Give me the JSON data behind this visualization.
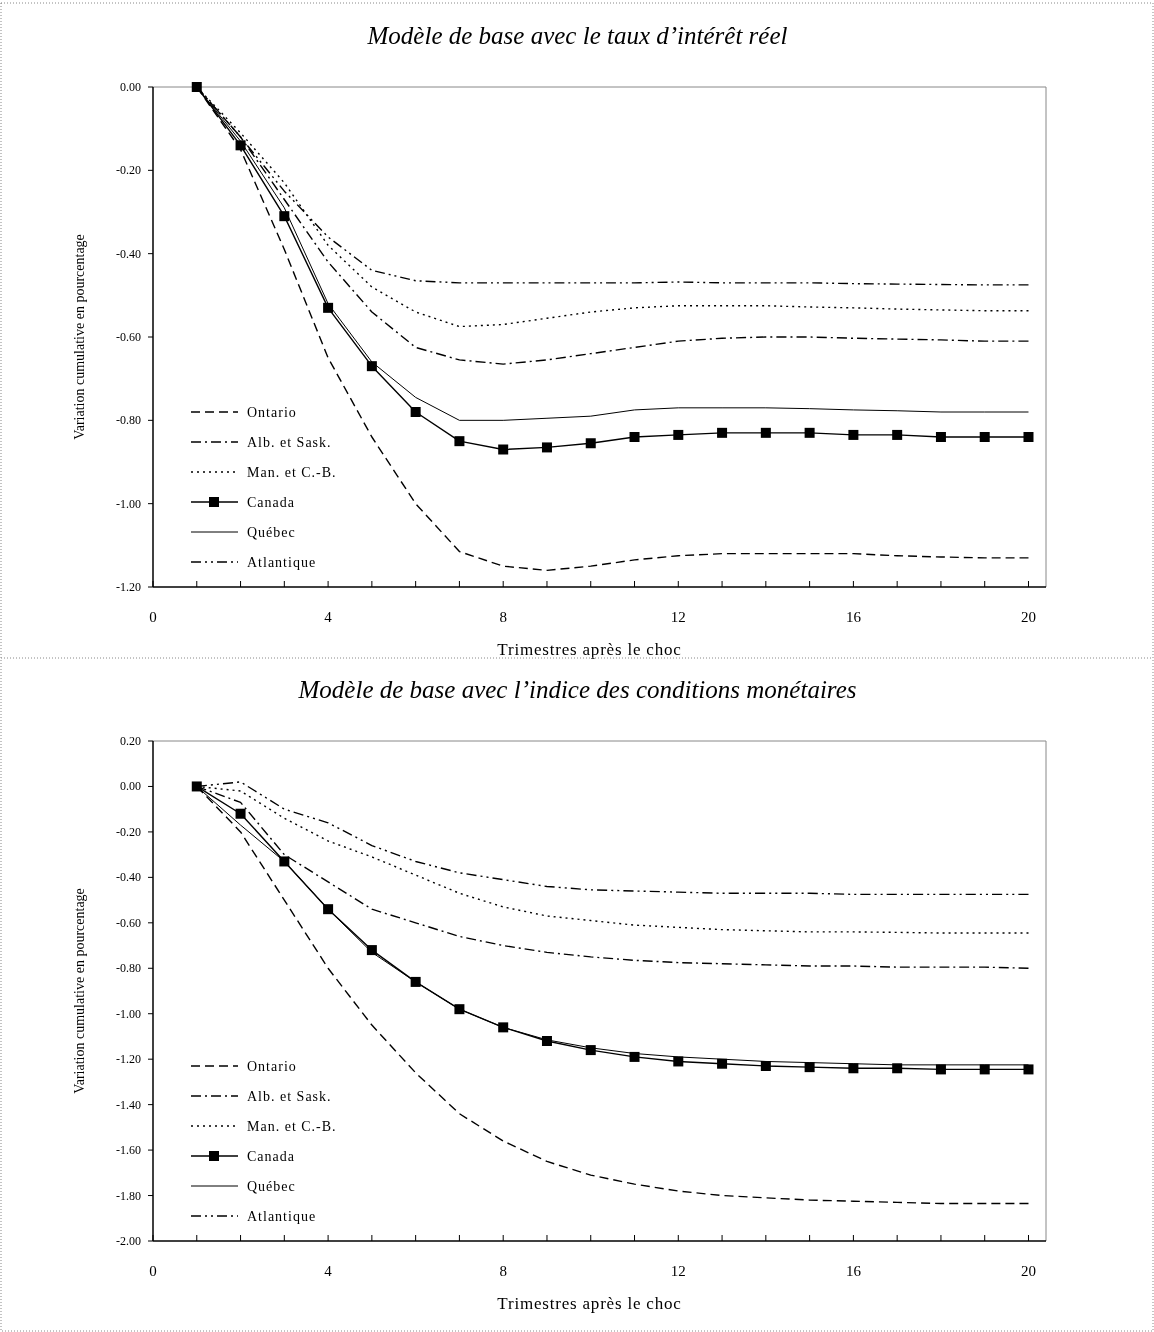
{
  "chart_data": [
    {
      "type": "line",
      "title": "Modèle de base avec le taux d’intérêt réel",
      "xlabel": "Trimestres après le choc",
      "ylabel": "Variation cumulative en pourcentage",
      "x": [
        1,
        2,
        3,
        4,
        5,
        6,
        7,
        8,
        9,
        10,
        11,
        12,
        13,
        14,
        15,
        16,
        17,
        18,
        19,
        20
      ],
      "xlim": [
        0,
        20.4
      ],
      "xticks": [
        0,
        {
          "value": 1,
          "label": null
        },
        {
          "value": 2,
          "label": null
        },
        {
          "value": 3,
          "label": null
        },
        4,
        {
          "value": 5,
          "label": null
        },
        {
          "value": 6,
          "label": null
        },
        {
          "value": 7,
          "label": null
        },
        8,
        {
          "value": 9,
          "label": null
        },
        {
          "value": 10,
          "label": null
        },
        {
          "value": 11,
          "label": null
        },
        12,
        {
          "value": 13,
          "label": null
        },
        {
          "value": 14,
          "label": null
        },
        {
          "value": 15,
          "label": null
        },
        16,
        {
          "value": 17,
          "label": null
        },
        {
          "value": 18,
          "label": null
        },
        {
          "value": 19,
          "label": null
        },
        20
      ],
      "ylim": [
        -1.2,
        0
      ],
      "yticks": [
        {
          "value": 0,
          "label": "0.00"
        },
        {
          "value": -0.2,
          "label": "-0.20"
        },
        {
          "value": -0.4,
          "label": "-0.40"
        },
        {
          "value": -0.6,
          "label": "-0.60"
        },
        {
          "value": -0.8,
          "label": "-0.80"
        },
        {
          "value": -1,
          "label": "-1.00"
        },
        {
          "value": -1.2,
          "label": "-1.20"
        }
      ],
      "grid": false,
      "legend": "bottom left",
      "series": [
        {
          "name": "Ontario",
          "color": "#000000",
          "line_style": "dashed",
          "marker": "none",
          "values": [
            0,
            -0.15,
            -0.39,
            -0.65,
            -0.84,
            -1.0,
            -1.115,
            -1.15,
            -1.16,
            -1.15,
            -1.135,
            -1.125,
            -1.12,
            -1.12,
            -1.12,
            -1.12,
            -1.125,
            -1.128,
            -1.13,
            -1.13
          ]
        },
        {
          "name": "Alb. et Sask.",
          "color": "#000000",
          "line_style": "dashdot",
          "marker": "none",
          "values": [
            0,
            -0.12,
            -0.27,
            -0.42,
            -0.54,
            -0.625,
            -0.655,
            -0.665,
            -0.655,
            -0.64,
            -0.625,
            -0.61,
            -0.603,
            -0.6,
            -0.6,
            -0.603,
            -0.605,
            -0.607,
            -0.61,
            -0.61
          ]
        },
        {
          "name": "Man. et C.-B.",
          "color": "#000000",
          "line_style": "dotted",
          "marker": "none",
          "values": [
            0,
            -0.11,
            -0.23,
            -0.38,
            -0.48,
            -0.54,
            -0.575,
            -0.57,
            -0.555,
            -0.54,
            -0.53,
            -0.525,
            -0.525,
            -0.525,
            -0.528,
            -0.53,
            -0.533,
            -0.535,
            -0.537,
            -0.537
          ]
        },
        {
          "name": "Canada",
          "color": "#000000",
          "line_style": "solid",
          "marker": "square",
          "values": [
            0,
            -0.14,
            -0.31,
            -0.53,
            -0.67,
            -0.78,
            -0.85,
            -0.87,
            -0.865,
            -0.855,
            -0.84,
            -0.835,
            -0.83,
            -0.83,
            -0.83,
            -0.835,
            -0.835,
            -0.84,
            -0.84,
            -0.84
          ]
        },
        {
          "name": "Québec",
          "color": "#000000",
          "line_style": "solid",
          "marker": "none",
          "values": [
            0,
            -0.13,
            -0.29,
            -0.52,
            -0.66,
            -0.745,
            -0.8,
            -0.8,
            -0.795,
            -0.79,
            -0.775,
            -0.77,
            -0.77,
            -0.77,
            -0.772,
            -0.775,
            -0.777,
            -0.78,
            -0.78,
            -0.78
          ]
        },
        {
          "name": "Atlantique",
          "color": "#000000",
          "line_style": "dashdotdot",
          "marker": "none",
          "values": [
            0,
            -0.12,
            -0.25,
            -0.36,
            -0.44,
            -0.465,
            -0.47,
            -0.47,
            -0.47,
            -0.47,
            -0.47,
            -0.468,
            -0.47,
            -0.47,
            -0.47,
            -0.472,
            -0.473,
            -0.474,
            -0.475,
            -0.475
          ]
        }
      ]
    },
    {
      "type": "line",
      "title": "Modèle de base avec l’indice des conditions monétaires",
      "xlabel": "Trimestres après le choc",
      "ylabel": "Variation cumulative en pourcentage",
      "x": [
        1,
        2,
        3,
        4,
        5,
        6,
        7,
        8,
        9,
        10,
        11,
        12,
        13,
        14,
        15,
        16,
        17,
        18,
        19,
        20
      ],
      "xlim": [
        0,
        20.4
      ],
      "xticks": [
        0,
        {
          "value": 1,
          "label": null
        },
        {
          "value": 2,
          "label": null
        },
        {
          "value": 3,
          "label": null
        },
        4,
        {
          "value": 5,
          "label": null
        },
        {
          "value": 6,
          "label": null
        },
        {
          "value": 7,
          "label": null
        },
        8,
        {
          "value": 9,
          "label": null
        },
        {
          "value": 10,
          "label": null
        },
        {
          "value": 11,
          "label": null
        },
        12,
        {
          "value": 13,
          "label": null
        },
        {
          "value": 14,
          "label": null
        },
        {
          "value": 15,
          "label": null
        },
        16,
        {
          "value": 17,
          "label": null
        },
        {
          "value": 18,
          "label": null
        },
        {
          "value": 19,
          "label": null
        },
        20
      ],
      "ylim": [
        -2,
        0.2
      ],
      "yticks": [
        {
          "value": 0.2,
          "label": "0.20"
        },
        {
          "value": 0,
          "label": "0.00"
        },
        {
          "value": -0.2,
          "label": "-0.20"
        },
        {
          "value": -0.4,
          "label": "-0.40"
        },
        {
          "value": -0.6,
          "label": "-0.60"
        },
        {
          "value": -0.8,
          "label": "-0.80"
        },
        {
          "value": -1,
          "label": "-1.00"
        },
        {
          "value": -1.2,
          "label": "-1.20"
        },
        {
          "value": -1.4,
          "label": "-1.40"
        },
        {
          "value": -1.6,
          "label": "-1.60"
        },
        {
          "value": -1.8,
          "label": "-1.80"
        },
        {
          "value": -2,
          "label": "-2.00"
        }
      ],
      "grid": false,
      "legend": "bottom left",
      "series": [
        {
          "name": "Ontario",
          "color": "#000000",
          "line_style": "dashed",
          "marker": "none",
          "values": [
            0,
            -0.2,
            -0.5,
            -0.8,
            -1.05,
            -1.26,
            -1.44,
            -1.56,
            -1.65,
            -1.71,
            -1.75,
            -1.78,
            -1.8,
            -1.81,
            -1.82,
            -1.825,
            -1.83,
            -1.835,
            -1.835,
            -1.835
          ]
        },
        {
          "name": "Alb. et Sask.",
          "color": "#000000",
          "line_style": "dashdot",
          "marker": "none",
          "values": [
            0,
            -0.07,
            -0.3,
            -0.42,
            -0.54,
            -0.6,
            -0.66,
            -0.7,
            -0.73,
            -0.75,
            -0.765,
            -0.775,
            -0.78,
            -0.785,
            -0.79,
            -0.79,
            -0.795,
            -0.795,
            -0.795,
            -0.8
          ]
        },
        {
          "name": "Man. et C.-B.",
          "color": "#000000",
          "line_style": "dotted",
          "marker": "none",
          "values": [
            0,
            -0.02,
            -0.14,
            -0.24,
            -0.31,
            -0.39,
            -0.47,
            -0.53,
            -0.57,
            -0.59,
            -0.61,
            -0.62,
            -0.63,
            -0.635,
            -0.64,
            -0.64,
            -0.642,
            -0.645,
            -0.645,
            -0.645
          ]
        },
        {
          "name": "Canada",
          "color": "#000000",
          "line_style": "solid",
          "marker": "square",
          "values": [
            0,
            -0.12,
            -0.33,
            -0.54,
            -0.72,
            -0.86,
            -0.98,
            -1.06,
            -1.12,
            -1.16,
            -1.19,
            -1.21,
            -1.22,
            -1.23,
            -1.235,
            -1.24,
            -1.24,
            -1.245,
            -1.245,
            -1.245
          ]
        },
        {
          "name": "Québec",
          "color": "#000000",
          "line_style": "solid",
          "marker": "none",
          "values": [
            0,
            -0.17,
            -0.33,
            -0.54,
            -0.73,
            -0.86,
            -0.98,
            -1.06,
            -1.115,
            -1.15,
            -1.175,
            -1.19,
            -1.2,
            -1.21,
            -1.215,
            -1.22,
            -1.225,
            -1.225,
            -1.225,
            -1.225
          ]
        },
        {
          "name": "Atlantique",
          "color": "#000000",
          "line_style": "dashdotdot",
          "marker": "none",
          "values": [
            0,
            0.02,
            -0.1,
            -0.16,
            -0.26,
            -0.33,
            -0.38,
            -0.41,
            -0.44,
            -0.455,
            -0.46,
            -0.465,
            -0.47,
            -0.47,
            -0.47,
            -0.475,
            -0.475,
            -0.475,
            -0.475,
            -0.475
          ]
        }
      ]
    }
  ]
}
